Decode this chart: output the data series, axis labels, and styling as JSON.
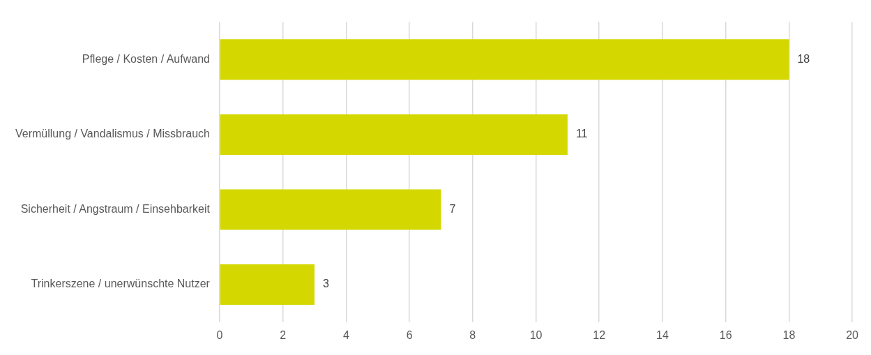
{
  "chart_data": {
    "type": "bar",
    "orientation": "horizontal",
    "categories": [
      "Pflege / Kosten / Aufwand",
      "Vermüllung / Vandalismus / Missbrauch",
      "Sicherheit / Angstraum / Einsehbarkeit",
      "Trinkerszene / unerwünschte Nutzer"
    ],
    "values": [
      18,
      11,
      7,
      3
    ],
    "color": "#d4d700",
    "xlim": [
      0,
      20
    ],
    "xticks": [
      0,
      2,
      4,
      6,
      8,
      10,
      12,
      14,
      16,
      18,
      20
    ],
    "grid": "x",
    "data_labels": true,
    "legend": false
  }
}
